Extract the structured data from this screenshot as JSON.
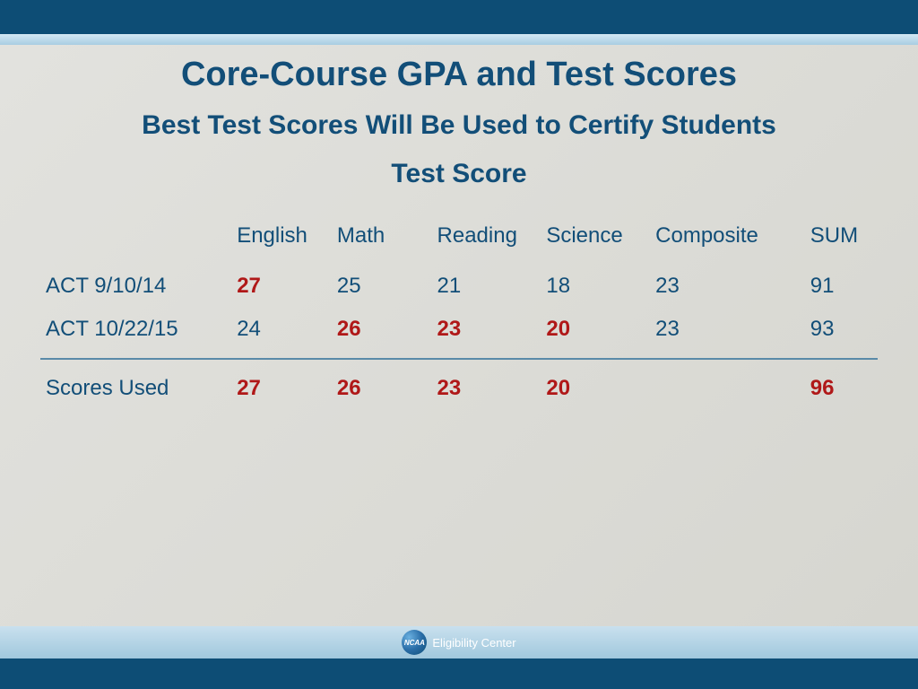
{
  "colors": {
    "dark_blue": "#0d4d75",
    "text_blue": "#124e78",
    "highlight_red": "#b01818",
    "light_bar": "#b8d6e6",
    "content_bg": "#dcdcd7"
  },
  "title": "Core-Course GPA and Test Scores",
  "subtitle": "Best Test Scores Will Be Used to Certify Students",
  "heading3": "Test Score",
  "table": {
    "columns": [
      "",
      "English",
      "Math",
      "Reading",
      "Science",
      "Composite",
      "SUM"
    ],
    "rows": [
      {
        "label": "ACT 9/10/14",
        "cells": [
          {
            "v": "27",
            "hl": true
          },
          {
            "v": "25",
            "hl": false
          },
          {
            "v": "21",
            "hl": false
          },
          {
            "v": "18",
            "hl": false
          },
          {
            "v": "23",
            "hl": false
          },
          {
            "v": "91",
            "hl": false
          }
        ]
      },
      {
        "label": "ACT 10/22/15",
        "cells": [
          {
            "v": "24",
            "hl": false
          },
          {
            "v": "26",
            "hl": true
          },
          {
            "v": "23",
            "hl": true
          },
          {
            "v": "20",
            "hl": true
          },
          {
            "v": "23",
            "hl": false
          },
          {
            "v": "93",
            "hl": false
          }
        ]
      }
    ],
    "summary": {
      "label": "Scores Used",
      "cells": [
        {
          "v": "27",
          "hl": true
        },
        {
          "v": "26",
          "hl": true
        },
        {
          "v": "23",
          "hl": true
        },
        {
          "v": "20",
          "hl": true
        },
        {
          "v": "",
          "hl": false
        },
        {
          "v": "96",
          "hl": true
        }
      ]
    }
  },
  "footer": {
    "logo_abbrev": "NCAA",
    "logo_text": "Eligibility Center"
  }
}
